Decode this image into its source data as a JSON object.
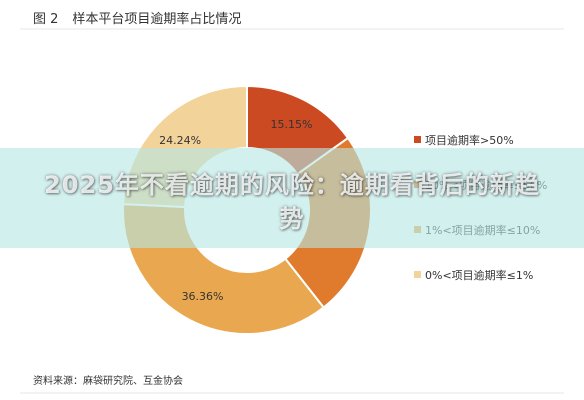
{
  "figure": {
    "number": "图 2",
    "title": "样本平台项目逾期率占比情况",
    "source": "资料来源：麻袋研究院、互金协会"
  },
  "overlay": {
    "headline": "2025年不看逾期的风险：逾期看背后的新趋势"
  },
  "chart_data": {
    "type": "pie",
    "donut": true,
    "legend_position": "right",
    "slices": [
      {
        "label": "项目逾期率>50%",
        "value": 15.15,
        "value_label": "15.15%",
        "color": "#cc4a22"
      },
      {
        "label": "10%<项目逾期率≤50%",
        "value": 24.24,
        "value_label": "",
        "color": "#e07a2c"
      },
      {
        "label": "1%<项目逾期率≤10%",
        "value": 36.36,
        "value_label": "36.36%",
        "color": "#e9a84f"
      },
      {
        "label": "0%<项目逾期率≤1%",
        "value": 24.24,
        "value_label": "24.24%",
        "color": "#f2d39a"
      }
    ]
  }
}
